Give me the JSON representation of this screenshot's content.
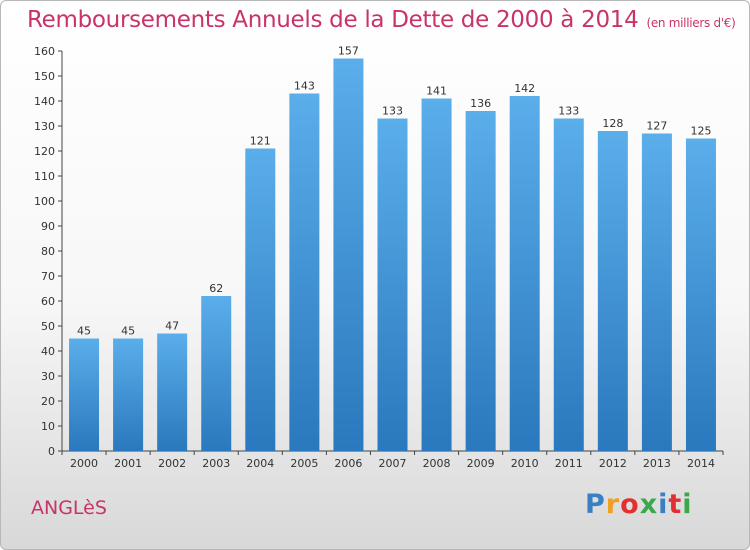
{
  "title": "Remboursements Annuels de la Dette de 2000 à 2014",
  "subtitle": "(en milliers d'€)",
  "commune": "ANGLèS",
  "logo": {
    "text": "Proxiti",
    "colors": [
      "#3a7fc4",
      "#f0a020",
      "#e03030",
      "#3aa84a",
      "#3a7fc4",
      "#e03030",
      "#3aa84a"
    ]
  },
  "chart_data": {
    "type": "bar",
    "categories": [
      "2000",
      "2001",
      "2002",
      "2003",
      "2004",
      "2005",
      "2006",
      "2007",
      "2008",
      "2009",
      "2010",
      "2011",
      "2012",
      "2013",
      "2014"
    ],
    "values": [
      45,
      45,
      47,
      62,
      121,
      143,
      157,
      133,
      141,
      136,
      142,
      133,
      128,
      127,
      125
    ],
    "ylim": [
      0,
      160
    ],
    "yticks": [
      0,
      10,
      20,
      30,
      40,
      50,
      60,
      70,
      80,
      90,
      100,
      110,
      120,
      130,
      140,
      150,
      160
    ],
    "grid": false,
    "bar_color": "#4a9ee0"
  }
}
